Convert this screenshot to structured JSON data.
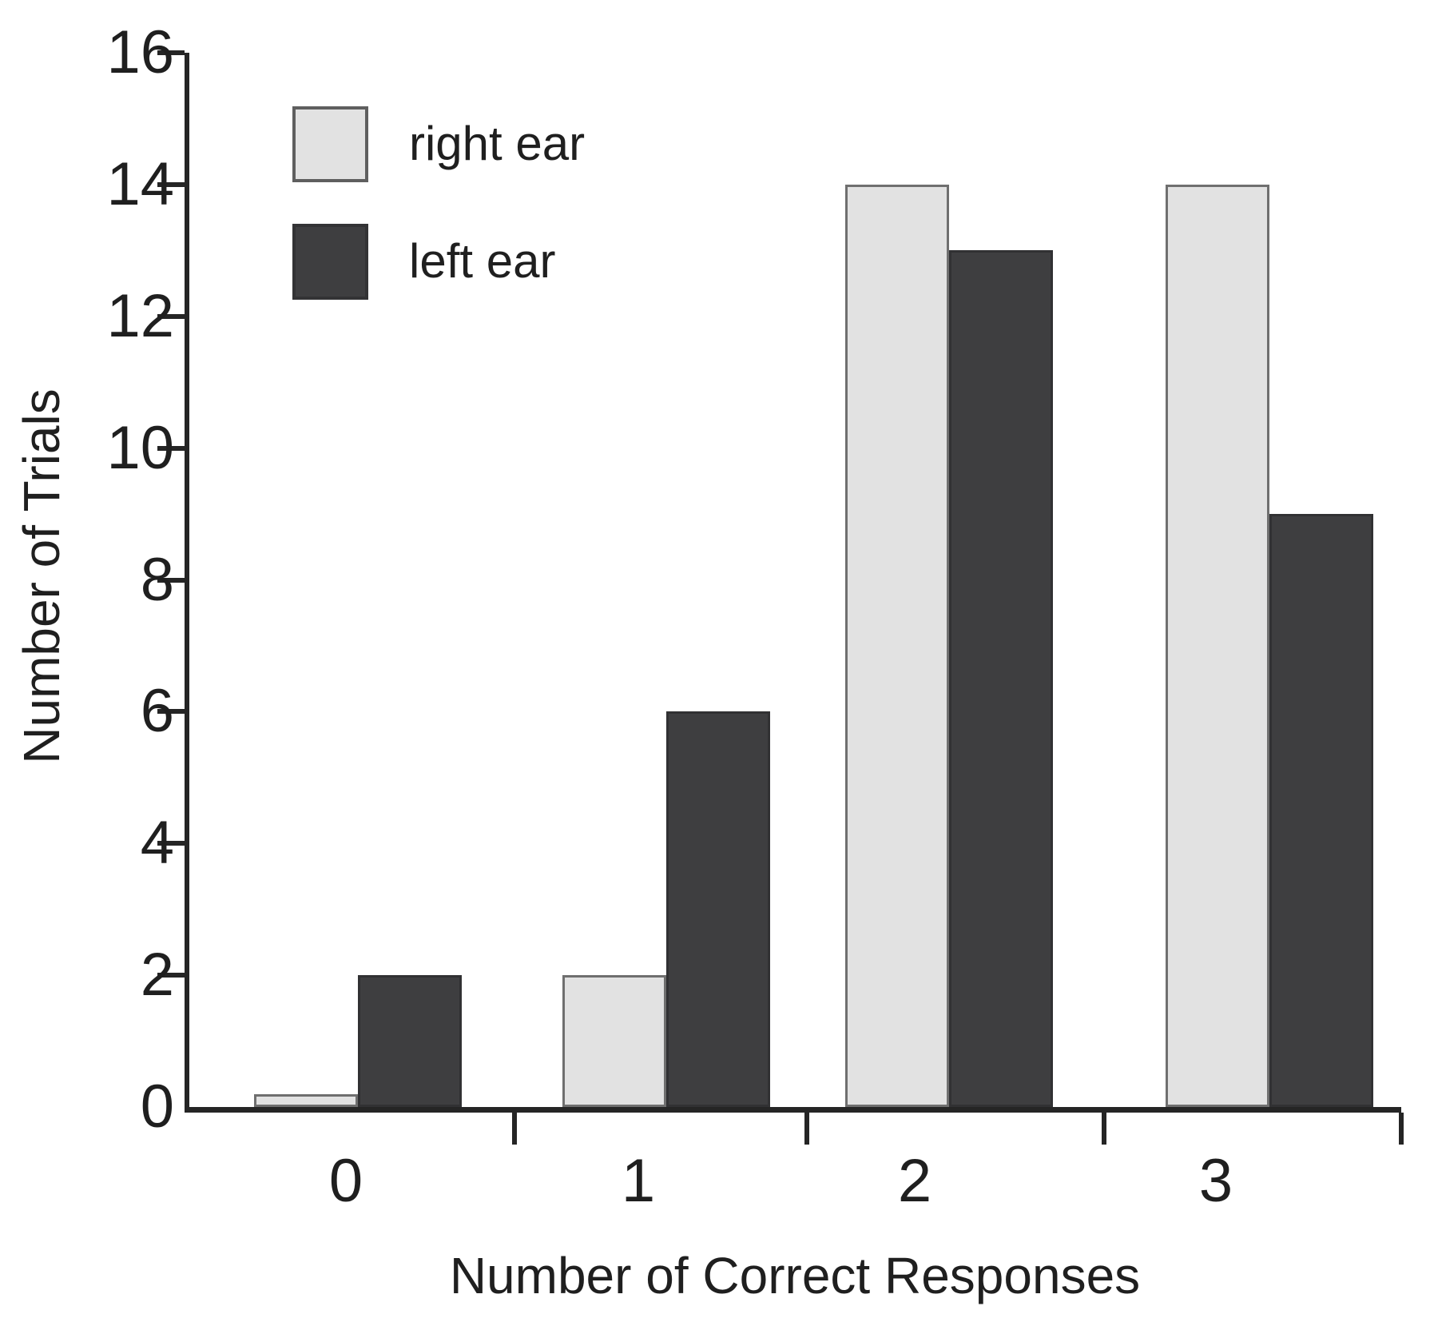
{
  "figure": {
    "background": "#ffffff",
    "ink_color": "#1f1f1f"
  },
  "chart_data": {
    "type": "bar",
    "title": "",
    "xlabel": "Number of Correct Responses",
    "ylabel": "Number of Trials",
    "categories": [
      "0",
      "1",
      "2",
      "3"
    ],
    "series": [
      {
        "name": "right ear",
        "fill": "#e2e2e2",
        "border": "#6f6f6f",
        "values": [
          0.2,
          2,
          14,
          14
        ]
      },
      {
        "name": "left ear",
        "fill": "#3e3e40",
        "border": "#313133",
        "values": [
          2,
          6,
          13,
          9
        ]
      }
    ],
    "ylim": [
      0,
      16
    ],
    "y_ticks": [
      0,
      2,
      4,
      6,
      8,
      10,
      12,
      14,
      16
    ],
    "grid": false,
    "legend_position": "top-left"
  }
}
